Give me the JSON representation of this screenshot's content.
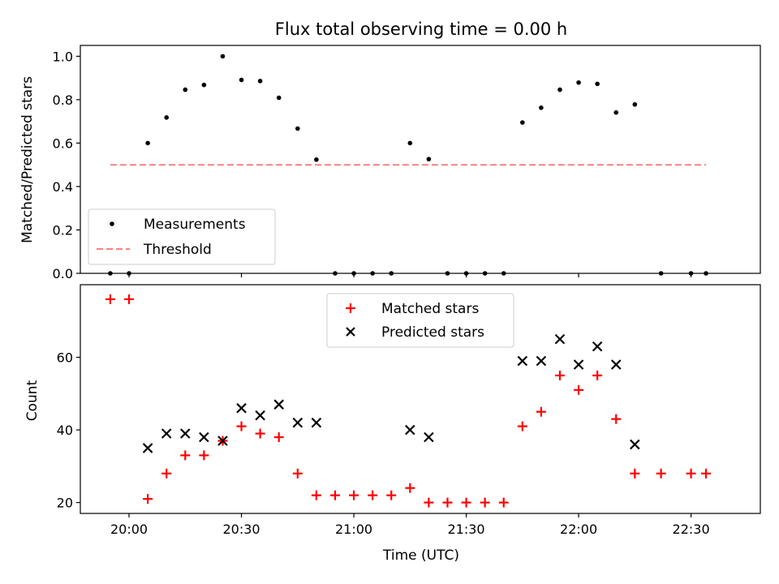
{
  "chart_data": {
    "type": "scatter",
    "title": "Flux total observing time = 0.00 h",
    "xlabel": "Time (UTC)",
    "x_ticks": [
      "20:00",
      "20:30",
      "21:00",
      "21:30",
      "22:00",
      "22:30"
    ],
    "x_tick_minutes": [
      1200,
      1230,
      1260,
      1290,
      1320,
      1350
    ],
    "xlim_minutes": [
      1187,
      1368.5
    ],
    "x_minutes": [
      1195,
      1200,
      1205,
      1210,
      1215,
      1220,
      1225,
      1230,
      1235,
      1240,
      1245,
      1250,
      1255,
      1260,
      1265,
      1270,
      1275,
      1280,
      1285,
      1290,
      1295,
      1300,
      1305,
      1310,
      1315,
      1320,
      1325,
      1330,
      1335,
      1342,
      1350,
      1354
    ],
    "panels": [
      {
        "ylabel": "Matched/Predicted stars",
        "ylim": [
          0,
          1.05
        ],
        "y_ticks": [
          0.0,
          0.2,
          0.4,
          0.6,
          0.8,
          1.0
        ],
        "y_tick_labels": [
          "0.0",
          "0.2",
          "0.4",
          "0.6",
          "0.8",
          "1.0"
        ],
        "series": [
          {
            "name": "Measurements",
            "marker": "dot",
            "color": "#000000",
            "values": [
              0.0,
              0.0,
              0.6,
              0.718,
              0.846,
              0.868,
              1.0,
              0.891,
              0.886,
              0.809,
              0.667,
              0.524,
              0.0,
              0.0,
              0.0,
              0.0,
              0.6,
              0.526,
              0.0,
              0.0,
              0.0,
              0.0,
              0.695,
              0.763,
              0.846,
              0.879,
              0.873,
              0.741,
              0.778,
              0.0,
              0.0,
              0.0
            ]
          },
          {
            "name": "Threshold",
            "marker": "dashed-line",
            "color": "#ff7f7f",
            "x_start": 1195,
            "x_end": 1354,
            "value": 0.5
          }
        ],
        "legend_position": "lower-left"
      },
      {
        "ylabel": "Count",
        "ylim": [
          17,
          80
        ],
        "y_ticks": [
          20,
          40,
          60
        ],
        "y_tick_labels": [
          "20",
          "40",
          "60"
        ],
        "series": [
          {
            "name": "Matched stars",
            "marker": "plus",
            "color": "#ff0000",
            "values": [
              76,
              76,
              21,
              28,
              33,
              33,
              37,
              41,
              39,
              38,
              28,
              22,
              22,
              22,
              22,
              22,
              24,
              20,
              20,
              20,
              20,
              20,
              41,
              45,
              55,
              51,
              55,
              43,
              28,
              28,
              28,
              28
            ]
          },
          {
            "name": "Predicted stars",
            "marker": "x",
            "color": "#000000",
            "values": [
              null,
              null,
              35,
              39,
              39,
              38,
              37,
              46,
              44,
              47,
              42,
              42,
              null,
              null,
              null,
              null,
              40,
              38,
              null,
              null,
              null,
              null,
              59,
              59,
              65,
              58,
              63,
              58,
              36,
              null,
              null,
              null
            ]
          }
        ],
        "legend_position": "upper-center"
      }
    ]
  }
}
